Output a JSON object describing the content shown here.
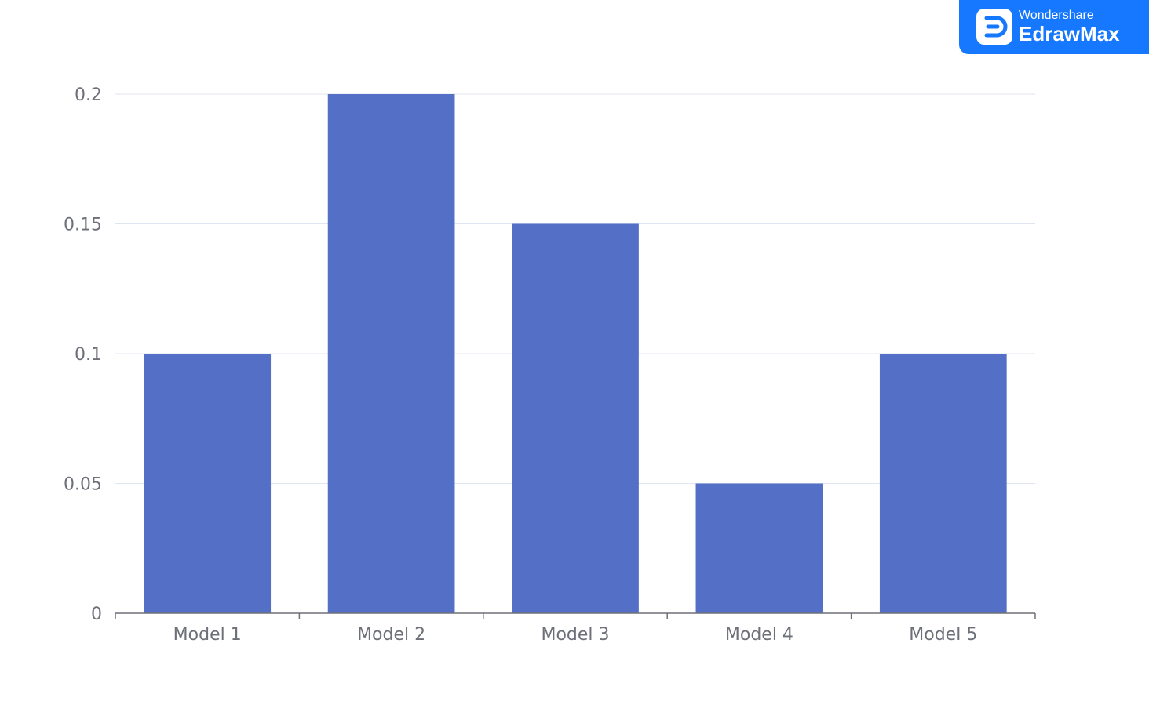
{
  "brand": {
    "company": "Wondershare",
    "product": "EdrawMax",
    "icon": "edrawmax-logo-icon",
    "color": "#1677ff"
  },
  "chart_data": {
    "type": "bar",
    "categories": [
      "Model 1",
      "Model 2",
      "Model 3",
      "Model 4",
      "Model 5"
    ],
    "values": [
      0.1,
      0.2,
      0.15,
      0.05,
      0.1
    ],
    "yticks": [
      "0",
      "0.05",
      "0.1",
      "0.15",
      "0.2"
    ],
    "ylim": [
      0,
      0.2
    ],
    "grid": true,
    "bar_color": "#5470c6",
    "title": "",
    "xlabel": "",
    "ylabel": ""
  }
}
